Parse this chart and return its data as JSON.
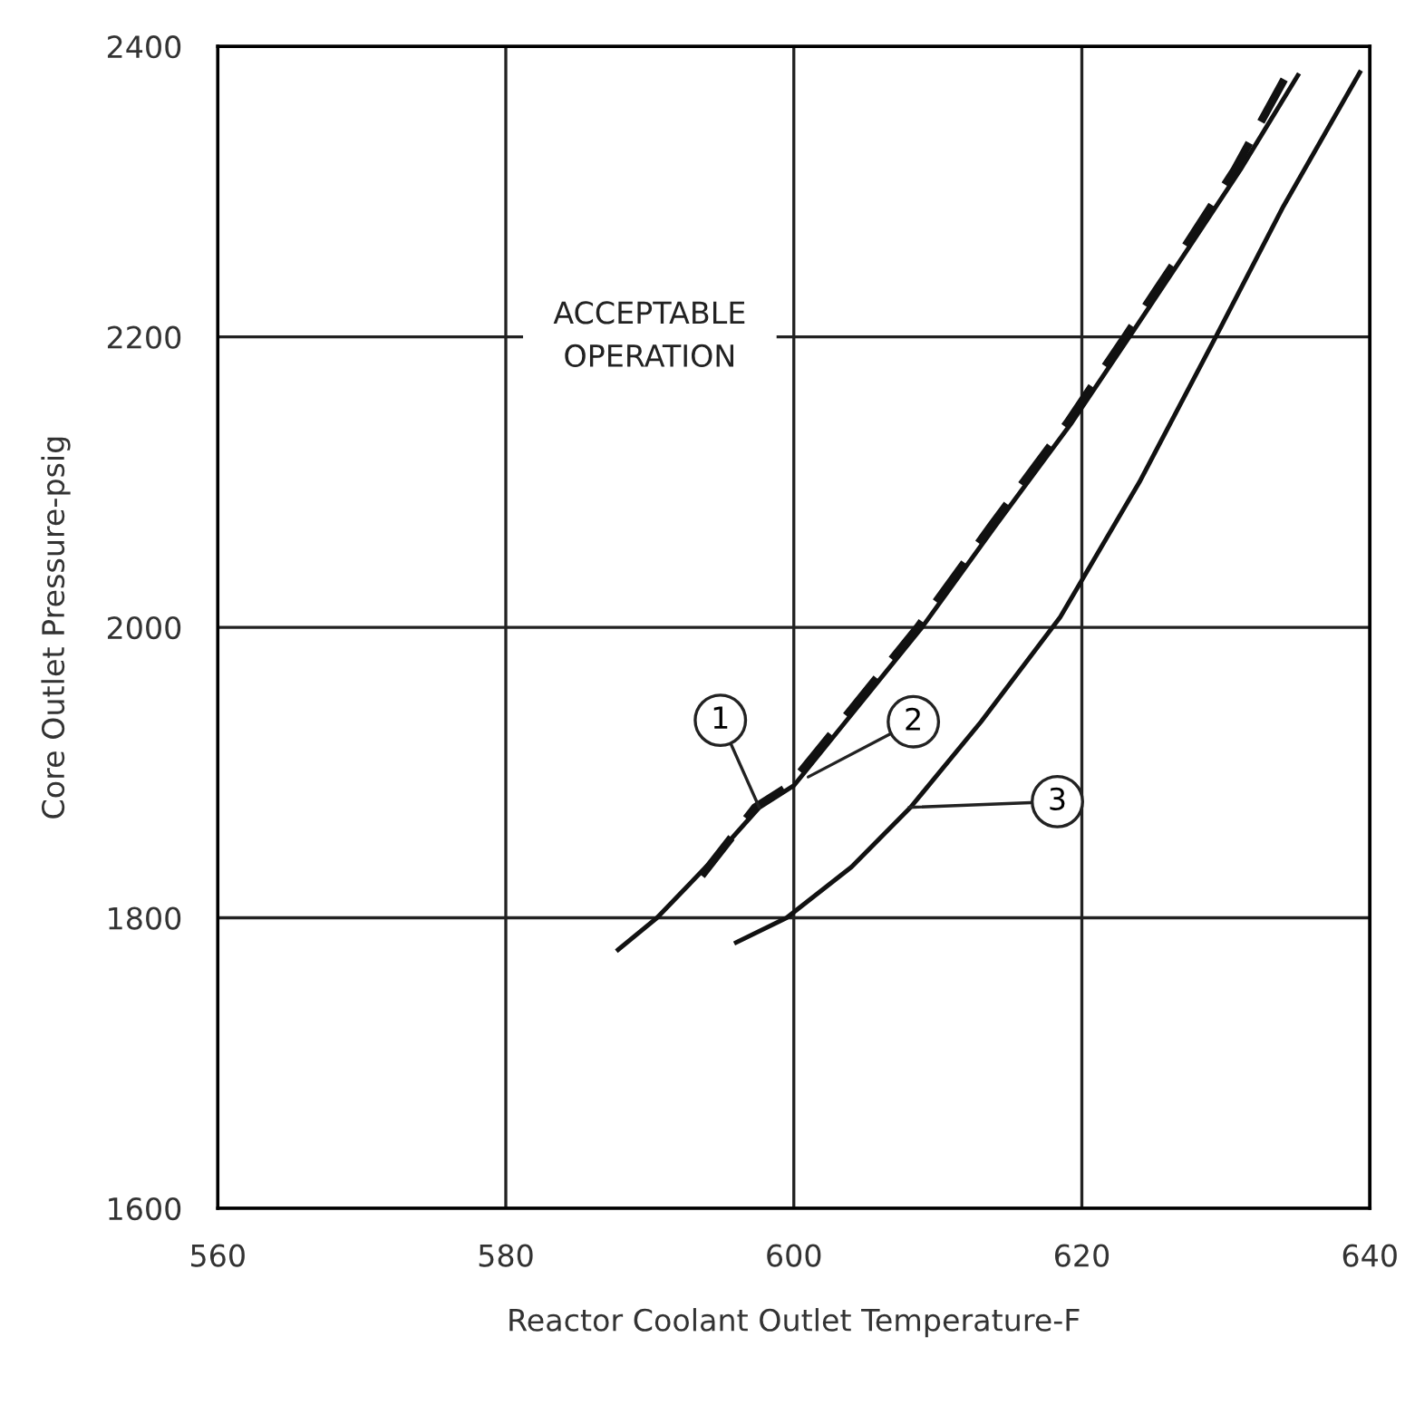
{
  "chart_data": {
    "type": "line",
    "xlabel": "Reactor Coolant Outlet Temperature-F",
    "ylabel": "Core Outlet Pressure-psig",
    "xlim": [
      560,
      640
    ],
    "xticks": [
      560,
      580,
      600,
      620,
      640
    ],
    "ylim": [
      1600,
      2400
    ],
    "yticks": [
      1600,
      1800,
      2000,
      2200,
      2400
    ],
    "grid": true,
    "series": [
      {
        "color": "#111111",
        "line_style": "solid",
        "x": [
          587.8,
          590.5,
          594,
          597.6,
          600,
          604,
          608.9,
          614,
          619.3,
          623.3,
          627,
          631,
          635.0
        ],
        "values": [
          1778,
          1800,
          1836,
          1876,
          1891,
          1940,
          2000,
          2070,
          2141,
          2200,
          2255,
          2315,
          2380
        ]
      },
      {
        "color": "#111111",
        "line_style": "dashed",
        "x": [
          593.6,
          597.3,
          599.7,
          603.7,
          608.6,
          613.7,
          619.0,
          623.0,
          626.7,
          630.6,
          634.2
        ],
        "values": [
          1829,
          1876,
          1891,
          1940,
          2000,
          2070,
          2141,
          2200,
          2255,
          2315,
          2380
        ]
      },
      {
        "color": "#111111",
        "line_style": "solid",
        "x": [
          596.0,
          599.5,
          604,
          608.1,
          613,
          618.5,
          624,
          629.3,
          634,
          639.3
        ],
        "values": [
          1783,
          1800,
          1835,
          1876,
          1935,
          2007,
          2100,
          2200,
          2290,
          2382
        ]
      }
    ],
    "annotations": [
      "ACCEPTABLE\nOPERATION",
      {
        "text": "1",
        "x": 597.6,
        "y": 1876
      },
      {
        "text": "2",
        "x": 601.0,
        "y": 1897
      },
      {
        "text": "3",
        "x": 608.0,
        "y": 1876
      }
    ]
  }
}
